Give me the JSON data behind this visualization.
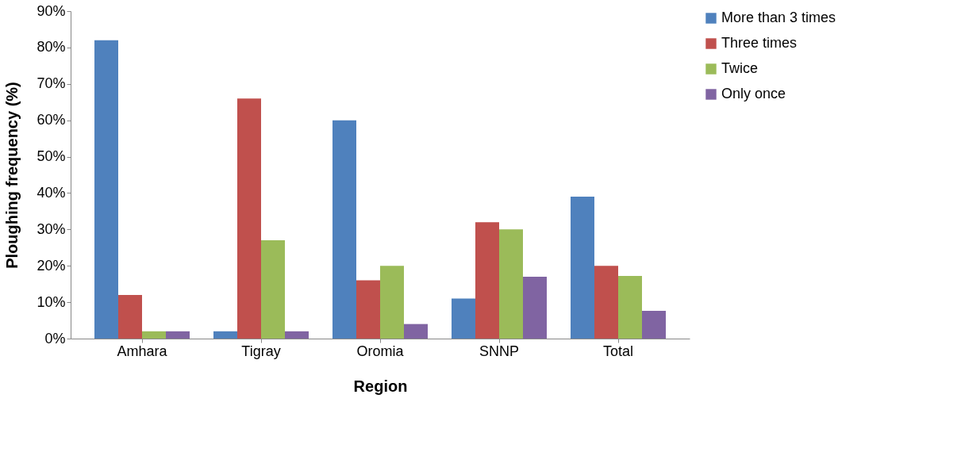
{
  "chart_data": {
    "type": "bar",
    "xlabel": "Region",
    "ylabel": "Ploughing frequency (%)",
    "categories": [
      "Amhara",
      "Tigray",
      "Oromia",
      "SNNP",
      "Total"
    ],
    "series": [
      {
        "name": "More than 3 times",
        "color": "#4f81bd",
        "values": [
          82,
          2,
          60,
          11,
          39
        ]
      },
      {
        "name": "Three times",
        "color": "#c0504d",
        "values": [
          12,
          66,
          16,
          32,
          20
        ]
      },
      {
        "name": " Twice",
        "color": "#9bbb59",
        "values": [
          2,
          27,
          20,
          30,
          17.2
        ]
      },
      {
        "name": "Only once",
        "color": "#8064a2",
        "values": [
          2,
          2,
          4,
          17,
          7.6
        ]
      }
    ],
    "ylim": [
      0,
      90
    ],
    "yticks": [
      {
        "value": 0,
        "label": "0%"
      },
      {
        "value": 10,
        "label": "10%"
      },
      {
        "value": 20,
        "label": "20%"
      },
      {
        "value": 30,
        "label": "30%"
      },
      {
        "value": 40,
        "label": "40%"
      },
      {
        "value": 50,
        "label": "50%"
      },
      {
        "value": 60,
        "label": "60%"
      },
      {
        "value": 70,
        "label": "70%"
      },
      {
        "value": 80,
        "label": "80%"
      },
      {
        "value": 90,
        "label": "90%"
      }
    ],
    "grid": false,
    "legend": "right"
  }
}
